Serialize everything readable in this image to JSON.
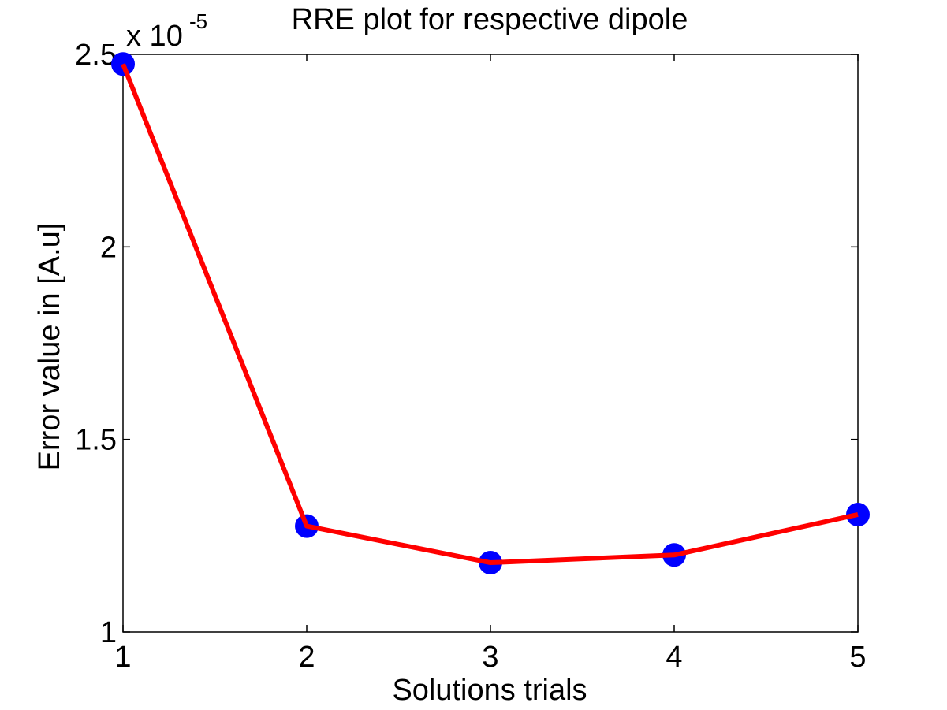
{
  "chart_data": {
    "type": "line",
    "title": "RRE plot for respective dipole",
    "xlabel": "Solutions trials",
    "ylabel": "Error value in [A.u]",
    "y_multiplier": {
      "base": "x 10",
      "exponent": "-5"
    },
    "x": [
      1,
      2,
      3,
      4,
      5
    ],
    "series": [
      {
        "values": [
          2.475e-05,
          1.275e-05,
          1.18e-05,
          1.2e-05,
          1.305e-05
        ]
      }
    ],
    "xlim": [
      1,
      5
    ],
    "ylim": [
      1e-05,
      2.5e-05
    ],
    "x_ticks": [
      {
        "value": 1,
        "label": "1"
      },
      {
        "value": 2,
        "label": "2"
      },
      {
        "value": 3,
        "label": "3"
      },
      {
        "value": 4,
        "label": "4"
      },
      {
        "value": 5,
        "label": "5"
      }
    ],
    "y_ticks": [
      {
        "value": 1e-05,
        "label": "1"
      },
      {
        "value": 1.5e-05,
        "label": "1.5"
      },
      {
        "value": 2e-05,
        "label": "2"
      },
      {
        "value": 2.5e-05,
        "label": "2.5"
      }
    ],
    "grid": false,
    "line_color": "#ff0000",
    "marker_color": "#0000ff"
  }
}
